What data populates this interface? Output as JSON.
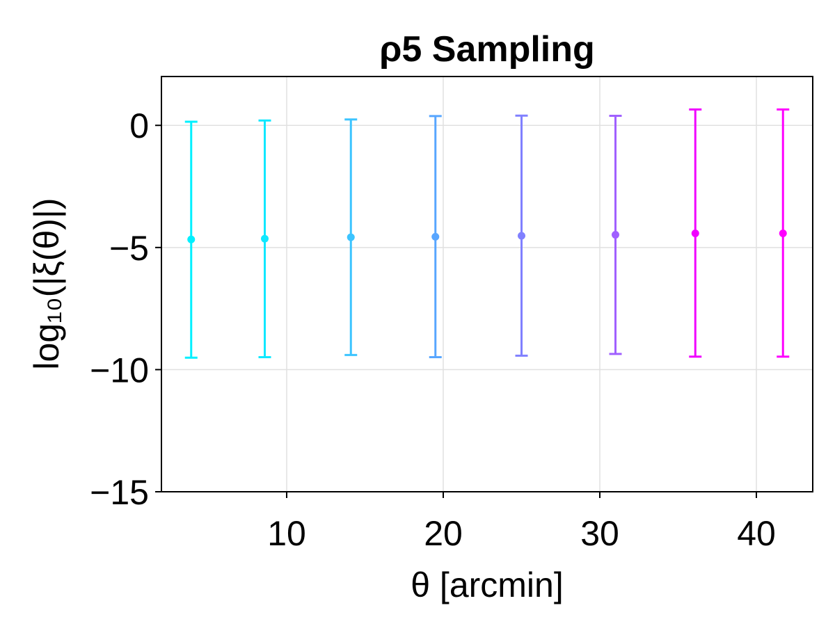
{
  "chart_data": {
    "type": "scatter",
    "title": "ρ5 Sampling",
    "xlabel": "θ [arcmin]",
    "ylabel": "log₁₀(|ξ(θ)|)",
    "xlim": [
      2,
      43.6
    ],
    "ylim": [
      -15,
      2
    ],
    "xticks": [
      10,
      20,
      30,
      40
    ],
    "yticks": [
      0,
      -5,
      -10,
      -15
    ],
    "xtick_labels": [
      "10",
      "20",
      "30",
      "40"
    ],
    "ytick_labels": [
      "0",
      "−5",
      "−10",
      "−15"
    ],
    "grid": true,
    "points": [
      {
        "x": 3.9,
        "y": -4.67,
        "lower": -9.51,
        "upper": 0.15,
        "color": "#00f0ff"
      },
      {
        "x": 8.6,
        "y": -4.64,
        "lower": -9.49,
        "upper": 0.2,
        "color": "#10e8ff"
      },
      {
        "x": 14.1,
        "y": -4.58,
        "lower": -9.4,
        "upper": 0.24,
        "color": "#3cc4ff"
      },
      {
        "x": 19.5,
        "y": -4.56,
        "lower": -9.49,
        "upper": 0.38,
        "color": "#58a6ff"
      },
      {
        "x": 25.0,
        "y": -4.52,
        "lower": -9.43,
        "upper": 0.4,
        "color": "#8080ff"
      },
      {
        "x": 31.0,
        "y": -4.48,
        "lower": -9.36,
        "upper": 0.39,
        "color": "#a060ff"
      },
      {
        "x": 36.1,
        "y": -4.42,
        "lower": -9.47,
        "upper": 0.65,
        "color": "#f000ff"
      },
      {
        "x": 41.7,
        "y": -4.42,
        "lower": -9.47,
        "upper": 0.65,
        "color": "#ff00ff"
      }
    ]
  }
}
